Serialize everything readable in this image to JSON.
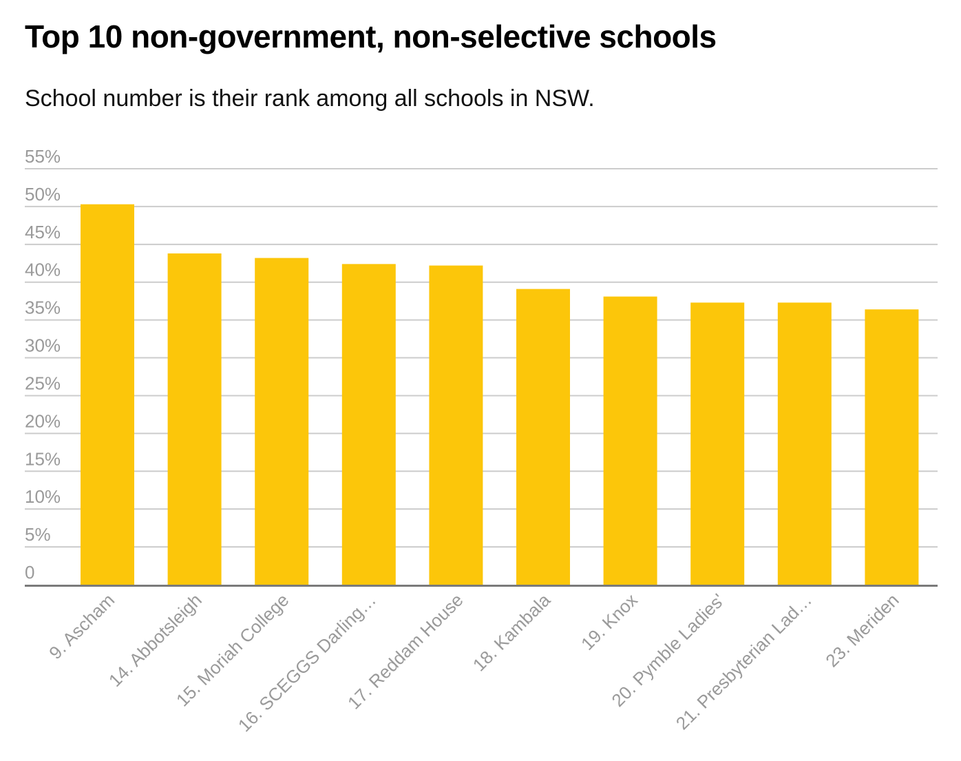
{
  "chart_data": {
    "type": "bar",
    "title": "Top 10 non-government, non-selective schools",
    "subtitle": "School number is their rank among all schools in NSW.",
    "categories": [
      "9. Ascham",
      "14. Abbotsleigh",
      "15. Moriah College",
      "16. SCEGGS Darling…",
      "17. Reddam House",
      "18. Kambala",
      "19. Knox",
      "20. Pymble Ladies'",
      "21. Presbyterian Lad…",
      "23. Meriden"
    ],
    "values": [
      50.3,
      43.8,
      43.2,
      42.4,
      42.2,
      39.1,
      38.1,
      37.3,
      37.3,
      36.4
    ],
    "y_ticks": [
      "0",
      "5%",
      "10%",
      "15%",
      "20%",
      "25%",
      "30%",
      "35%",
      "40%",
      "45%",
      "50%",
      "55%"
    ],
    "ylim": [
      0,
      55
    ],
    "xlabel": "",
    "ylabel": "",
    "grid": true,
    "bar_color": "#fcc60a",
    "grid_color": "#cccccc",
    "axis_color": "#7a7a7a",
    "label_color": "#9a9a9a"
  }
}
